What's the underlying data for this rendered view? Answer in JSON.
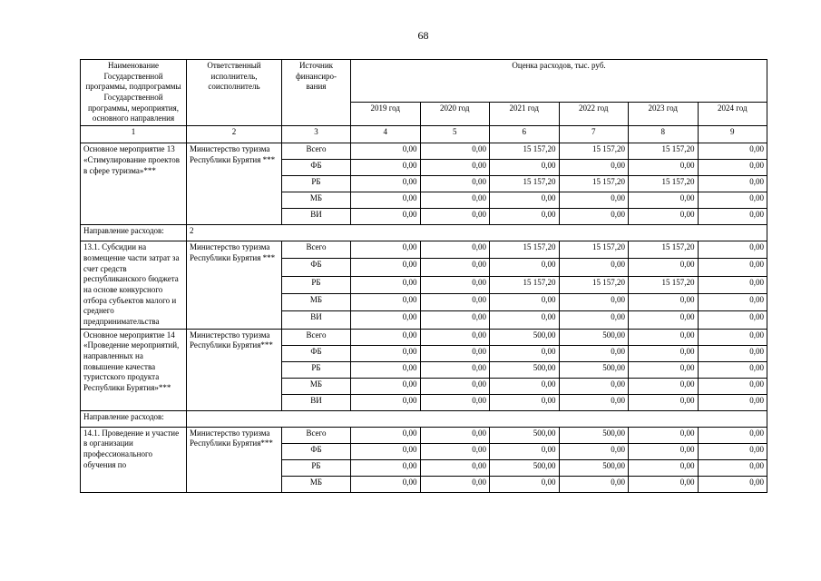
{
  "page": {
    "number": "68"
  },
  "table": {
    "header": {
      "program": "Наименование Государственной программы, подпрограммы Государственной программы, мероприятия, основного направления",
      "executor": "Ответственный исполнитель, соисполнитель",
      "source": "Источник\nфинансиро-\nвания",
      "expenses_title": "Оценка расходов, тыс. руб.",
      "years": [
        "2019 год",
        "2020 год",
        "2021 год",
        "2022 год",
        "2023 год",
        "2024 год"
      ],
      "numbering": [
        "1",
        "2",
        "3",
        "4",
        "5",
        "6",
        "7",
        "8",
        "9"
      ]
    },
    "sections": [
      {
        "type": "program",
        "name": "Основное мероприятие 13 «Стимулирование проектов в сфере туризма»***",
        "executor": "Министерство туризма Республики Бурятия ***",
        "rows": [
          {
            "source": "Всего",
            "values": [
              "0,00",
              "0,00",
              "15 157,20",
              "15 157,20",
              "15 157,20",
              "0,00"
            ]
          },
          {
            "source": "ФБ",
            "values": [
              "0,00",
              "0,00",
              "0,00",
              "0,00",
              "0,00",
              "0,00"
            ]
          },
          {
            "source": "РБ",
            "values": [
              "0,00",
              "0,00",
              "15 157,20",
              "15 157,20",
              "15 157,20",
              "0,00"
            ]
          },
          {
            "source": "МБ",
            "values": [
              "0,00",
              "0,00",
              "0,00",
              "0,00",
              "0,00",
              "0,00"
            ]
          },
          {
            "source": "ВИ",
            "values": [
              "0,00",
              "0,00",
              "0,00",
              "0,00",
              "0,00",
              "0,00"
            ]
          }
        ]
      },
      {
        "type": "direction",
        "label": "Направление расходов:",
        "value": "2"
      },
      {
        "type": "program",
        "name": "13.1. Субсидии на возмещение части затрат за счет средств республиканского бюджета на основе конкурсного отбора субъектов малого и среднего предпринимательства",
        "executor": "Министерство туризма Республики Бурятия ***",
        "rows": [
          {
            "source": "Всего",
            "values": [
              "0,00",
              "0,00",
              "15 157,20",
              "15 157,20",
              "15 157,20",
              "0,00"
            ]
          },
          {
            "source": "ФБ",
            "values": [
              "0,00",
              "0,00",
              "0,00",
              "0,00",
              "0,00",
              "0,00"
            ]
          },
          {
            "source": "РБ",
            "values": [
              "0,00",
              "0,00",
              "15 157,20",
              "15 157,20",
              "15 157,20",
              "0,00"
            ]
          },
          {
            "source": "МБ",
            "values": [
              "0,00",
              "0,00",
              "0,00",
              "0,00",
              "0,00",
              "0,00"
            ]
          },
          {
            "source": "ВИ",
            "values": [
              "0,00",
              "0,00",
              "0,00",
              "0,00",
              "0,00",
              "0,00"
            ]
          }
        ]
      },
      {
        "type": "program",
        "name": "Основное мероприятие 14 «Проведение мероприятий, направленных на повышение качества туристского продукта Республики Бурятия»***",
        "executor": "Министерство туризма Республики Бурятия***",
        "rows": [
          {
            "source": "Всего",
            "values": [
              "0,00",
              "0,00",
              "500,00",
              "500,00",
              "0,00",
              "0,00"
            ]
          },
          {
            "source": "ФБ",
            "values": [
              "0,00",
              "0,00",
              "0,00",
              "0,00",
              "0,00",
              "0,00"
            ]
          },
          {
            "source": "РБ",
            "values": [
              "0,00",
              "0,00",
              "500,00",
              "500,00",
              "0,00",
              "0,00"
            ]
          },
          {
            "source": "МБ",
            "values": [
              "0,00",
              "0,00",
              "0,00",
              "0,00",
              "0,00",
              "0,00"
            ]
          },
          {
            "source": "ВИ",
            "values": [
              "0,00",
              "0,00",
              "0,00",
              "0,00",
              "0,00",
              "0,00"
            ]
          }
        ]
      },
      {
        "type": "direction",
        "label": "Направление расходов:",
        "value": ""
      },
      {
        "type": "program",
        "name": "14.1. Проведение и участие в организации профессионального обучения по",
        "executor": "Министерство туризма Республики Бурятия***",
        "rows": [
          {
            "source": "Всего",
            "values": [
              "0,00",
              "0,00",
              "500,00",
              "500,00",
              "0,00",
              "0,00"
            ]
          },
          {
            "source": "ФБ",
            "values": [
              "0,00",
              "0,00",
              "0,00",
              "0,00",
              "0,00",
              "0,00"
            ]
          },
          {
            "source": "РБ",
            "values": [
              "0,00",
              "0,00",
              "500,00",
              "500,00",
              "0,00",
              "0,00"
            ]
          },
          {
            "source": "МБ",
            "values": [
              "0,00",
              "0,00",
              "0,00",
              "0,00",
              "0,00",
              "0,00"
            ]
          }
        ]
      }
    ]
  }
}
